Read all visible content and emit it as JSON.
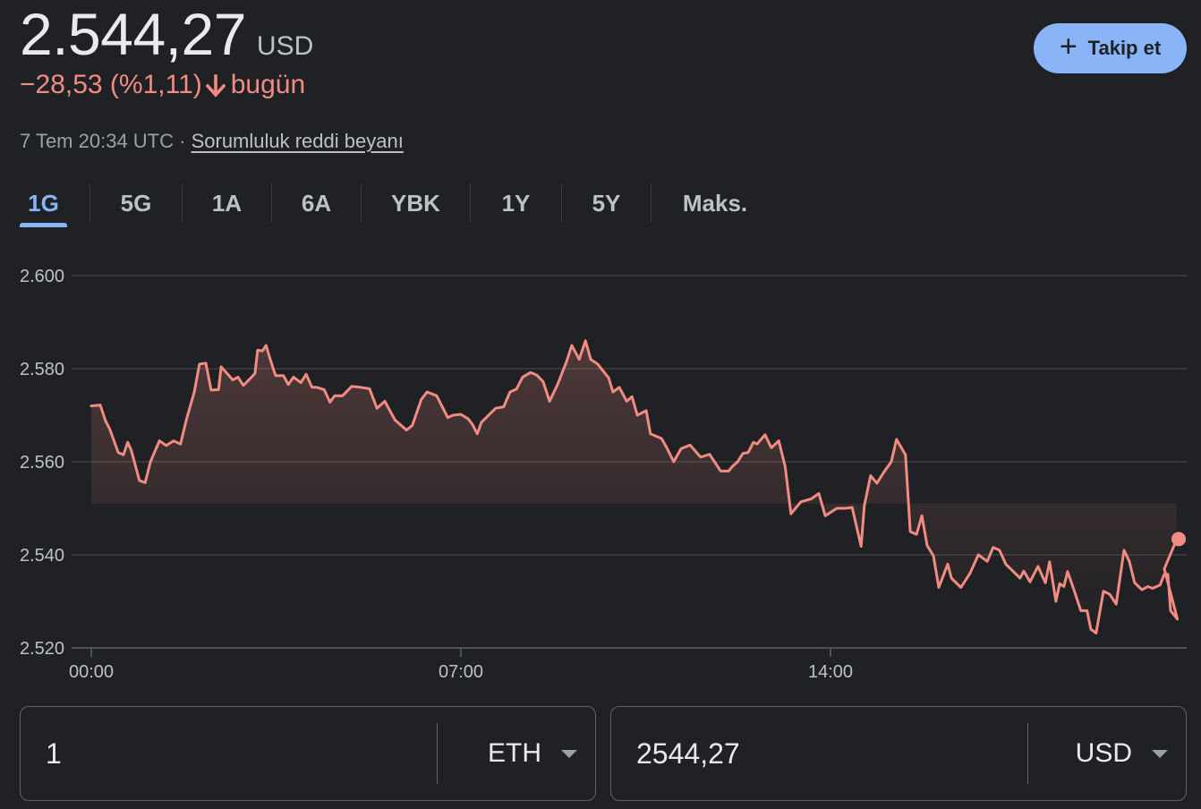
{
  "header": {
    "price": "2.544,27",
    "currency": "USD",
    "change": "−28,53 (%1,11)",
    "change_period": "bugün",
    "timestamp": "7 Tem 20:34 UTC",
    "separator": " · ",
    "disclaimer": "Sorumluluk reddi beyanı",
    "follow_label": "Takip et",
    "colors": {
      "negative": "#f28b82",
      "accent": "#8ab4f8"
    }
  },
  "tabs": [
    {
      "label": "1G",
      "active": true
    },
    {
      "label": "5G"
    },
    {
      "label": "1A"
    },
    {
      "label": "6A"
    },
    {
      "label": "YBK"
    },
    {
      "label": "1Y"
    },
    {
      "label": "5Y"
    },
    {
      "label": "Maks."
    }
  ],
  "chart_data": {
    "type": "line",
    "y_tick_labels": [
      "2.600",
      "2.580",
      "2.560",
      "2.540",
      "2.520"
    ],
    "y_ticks": [
      2600,
      2580,
      2560,
      2540,
      2520
    ],
    "ylim": [
      2520,
      2600
    ],
    "x_tick_labels": [
      "00:00",
      "07:00",
      "14:00"
    ],
    "x_ticks_hours": [
      0,
      7,
      14
    ],
    "xlim_hours": [
      0,
      20.57
    ],
    "grid": true,
    "line_color": "#f28b82",
    "series": [
      {
        "points": [
          [
            0.0,
            2572.0
          ],
          [
            0.17,
            2572.2
          ],
          [
            0.27,
            2568.8
          ],
          [
            0.35,
            2567.0
          ],
          [
            0.51,
            2562.0
          ],
          [
            0.61,
            2561.5
          ],
          [
            0.69,
            2564.2
          ],
          [
            0.76,
            2562.4
          ],
          [
            0.91,
            2556.0
          ],
          [
            1.02,
            2555.5
          ],
          [
            1.12,
            2560.0
          ],
          [
            1.29,
            2564.5
          ],
          [
            1.42,
            2563.5
          ],
          [
            1.56,
            2564.5
          ],
          [
            1.69,
            2563.8
          ],
          [
            1.8,
            2569.0
          ],
          [
            1.95,
            2575.0
          ],
          [
            2.05,
            2581.0
          ],
          [
            2.17,
            2581.2
          ],
          [
            2.27,
            2575.4
          ],
          [
            2.41,
            2575.5
          ],
          [
            2.46,
            2580.4
          ],
          [
            2.68,
            2577.6
          ],
          [
            2.78,
            2578.2
          ],
          [
            2.88,
            2576.4
          ],
          [
            3.02,
            2578.0
          ],
          [
            3.1,
            2579.0
          ],
          [
            3.15,
            2584.0
          ],
          [
            3.24,
            2583.8
          ],
          [
            3.31,
            2585.0
          ],
          [
            3.39,
            2582.0
          ],
          [
            3.49,
            2578.5
          ],
          [
            3.64,
            2578.5
          ],
          [
            3.73,
            2576.6
          ],
          [
            3.83,
            2578.2
          ],
          [
            3.97,
            2577.0
          ],
          [
            4.07,
            2578.8
          ],
          [
            4.18,
            2576.0
          ],
          [
            4.27,
            2576.0
          ],
          [
            4.41,
            2575.5
          ],
          [
            4.52,
            2572.8
          ],
          [
            4.61,
            2574.2
          ],
          [
            4.76,
            2574.2
          ],
          [
            4.93,
            2576.2
          ],
          [
            5.1,
            2576.0
          ],
          [
            5.27,
            2575.7
          ],
          [
            5.41,
            2571.5
          ],
          [
            5.56,
            2573.0
          ],
          [
            5.75,
            2569.0
          ],
          [
            5.97,
            2566.8
          ],
          [
            6.08,
            2567.8
          ],
          [
            6.25,
            2573.4
          ],
          [
            6.36,
            2575.0
          ],
          [
            6.54,
            2574.2
          ],
          [
            6.75,
            2569.5
          ],
          [
            6.85,
            2570.0
          ],
          [
            7.0,
            2570.2
          ],
          [
            7.14,
            2569.2
          ],
          [
            7.22,
            2568.0
          ],
          [
            7.31,
            2566.0
          ],
          [
            7.39,
            2568.5
          ],
          [
            7.66,
            2571.5
          ],
          [
            7.81,
            2571.8
          ],
          [
            7.93,
            2575.0
          ],
          [
            8.05,
            2575.6
          ],
          [
            8.17,
            2578.2
          ],
          [
            8.32,
            2579.2
          ],
          [
            8.44,
            2578.6
          ],
          [
            8.56,
            2577.2
          ],
          [
            8.68,
            2573.0
          ],
          [
            8.83,
            2576.6
          ],
          [
            9.0,
            2581.5
          ],
          [
            9.1,
            2585.0
          ],
          [
            9.24,
            2582.0
          ],
          [
            9.36,
            2586.0
          ],
          [
            9.46,
            2582.0
          ],
          [
            9.59,
            2581.0
          ],
          [
            9.8,
            2578.0
          ],
          [
            9.88,
            2575.0
          ],
          [
            10.0,
            2576.0
          ],
          [
            10.14,
            2573.0
          ],
          [
            10.24,
            2574.0
          ],
          [
            10.34,
            2570.0
          ],
          [
            10.51,
            2571.0
          ],
          [
            10.59,
            2566.0
          ],
          [
            10.8,
            2565.0
          ],
          [
            10.9,
            2563.0
          ],
          [
            11.03,
            2560.0
          ],
          [
            11.17,
            2562.8
          ],
          [
            11.34,
            2563.6
          ],
          [
            11.54,
            2561.0
          ],
          [
            11.71,
            2561.6
          ],
          [
            11.92,
            2558.0
          ],
          [
            12.07,
            2558.0
          ],
          [
            12.14,
            2559.0
          ],
          [
            12.24,
            2560.0
          ],
          [
            12.34,
            2561.8
          ],
          [
            12.44,
            2562.0
          ],
          [
            12.54,
            2564.2
          ],
          [
            12.61,
            2563.8
          ],
          [
            12.76,
            2565.8
          ],
          [
            12.88,
            2563.0
          ],
          [
            13.02,
            2564.5
          ],
          [
            13.14,
            2559.0
          ],
          [
            13.25,
            2548.8
          ],
          [
            13.44,
            2551.4
          ],
          [
            13.63,
            2552.0
          ],
          [
            13.78,
            2553.2
          ],
          [
            13.9,
            2548.4
          ],
          [
            14.12,
            2550.0
          ],
          [
            14.29,
            2550.0
          ],
          [
            14.41,
            2550.2
          ],
          [
            14.58,
            2541.8
          ],
          [
            14.64,
            2550.6
          ],
          [
            14.76,
            2557.0
          ],
          [
            14.88,
            2555.4
          ],
          [
            15.0,
            2557.6
          ],
          [
            15.15,
            2560.0
          ],
          [
            15.25,
            2564.8
          ],
          [
            15.42,
            2561.5
          ],
          [
            15.51,
            2545.0
          ],
          [
            15.63,
            2544.4
          ],
          [
            15.73,
            2548.4
          ],
          [
            15.83,
            2542.0
          ],
          [
            15.95,
            2539.8
          ],
          [
            16.05,
            2533.0
          ],
          [
            16.22,
            2538.0
          ],
          [
            16.29,
            2535.0
          ],
          [
            16.47,
            2533.0
          ],
          [
            16.64,
            2536.0
          ],
          [
            16.8,
            2540.0
          ],
          [
            16.97,
            2538.6
          ],
          [
            17.08,
            2541.6
          ],
          [
            17.2,
            2541.0
          ],
          [
            17.32,
            2538.0
          ],
          [
            17.59,
            2535.0
          ],
          [
            17.66,
            2536.5
          ],
          [
            17.78,
            2534.2
          ],
          [
            17.85,
            2535.8
          ],
          [
            17.93,
            2537.5
          ],
          [
            18.07,
            2534.0
          ],
          [
            18.15,
            2538.5
          ],
          [
            18.27,
            2530.0
          ],
          [
            18.34,
            2533.8
          ],
          [
            18.42,
            2533.2
          ],
          [
            18.49,
            2536.4
          ],
          [
            18.61,
            2532.5
          ],
          [
            18.74,
            2528.0
          ],
          [
            18.86,
            2528.0
          ],
          [
            18.93,
            2524.0
          ],
          [
            19.03,
            2523.2
          ],
          [
            19.17,
            2532.2
          ],
          [
            19.29,
            2531.5
          ],
          [
            19.41,
            2529.4
          ],
          [
            19.56,
            2541.0
          ],
          [
            19.66,
            2538.6
          ],
          [
            19.76,
            2534.0
          ],
          [
            19.9,
            2532.5
          ],
          [
            20.01,
            2533.2
          ],
          [
            20.1,
            2532.8
          ],
          [
            20.24,
            2533.5
          ],
          [
            20.32,
            2535.8
          ],
          [
            20.39,
            2535.8
          ],
          [
            20.44,
            2528.0
          ],
          [
            20.57,
            2526.2
          ],
          [
            20.56,
            2543.4
          ]
        ]
      }
    ]
  },
  "converter": {
    "from_value": "1",
    "from_unit": "ETH",
    "to_value": "2544,27",
    "to_unit": "USD"
  }
}
